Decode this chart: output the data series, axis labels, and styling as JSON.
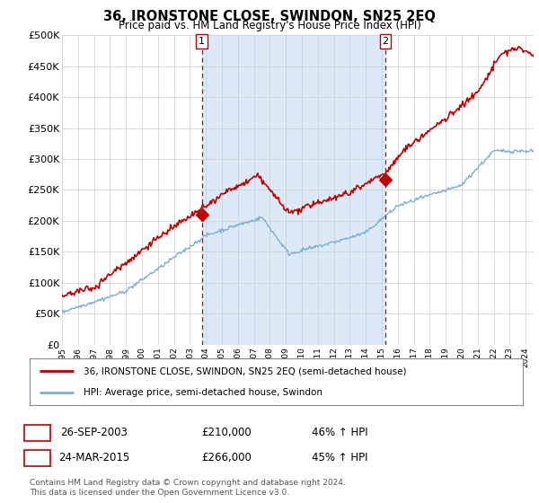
{
  "title": "36, IRONSTONE CLOSE, SWINDON, SN25 2EQ",
  "subtitle": "Price paid vs. HM Land Registry's House Price Index (HPI)",
  "ylabel_ticks": [
    "£0",
    "£50K",
    "£100K",
    "£150K",
    "£200K",
    "£250K",
    "£300K",
    "£350K",
    "£400K",
    "£450K",
    "£500K"
  ],
  "ytick_values": [
    0,
    50000,
    100000,
    150000,
    200000,
    250000,
    300000,
    350000,
    400000,
    450000,
    500000
  ],
  "ylim": [
    0,
    500000
  ],
  "sale1_date": 2003.74,
  "sale1_price": 210000,
  "sale1_label": "1",
  "sale2_date": 2015.23,
  "sale2_price": 266000,
  "sale2_label": "2",
  "hpi_color": "#7bafd4",
  "price_color": "#c00000",
  "marker_color": "#c00000",
  "vline_color": "#c00000",
  "grid_color": "#cccccc",
  "shade_color": "#dceaf7",
  "background_color": "#ffffff",
  "legend_label_price": "36, IRONSTONE CLOSE, SWINDON, SN25 2EQ (semi-detached house)",
  "legend_label_hpi": "HPI: Average price, semi-detached house, Swindon",
  "table_row1": [
    "1",
    "26-SEP-2003",
    "£210,000",
    "46% ↑ HPI"
  ],
  "table_row2": [
    "2",
    "24-MAR-2015",
    "£266,000",
    "45% ↑ HPI"
  ],
  "footnote": "Contains HM Land Registry data © Crown copyright and database right 2024.\nThis data is licensed under the Open Government Licence v3.0.",
  "xlim_start": 1995.0,
  "xlim_end": 2024.5
}
